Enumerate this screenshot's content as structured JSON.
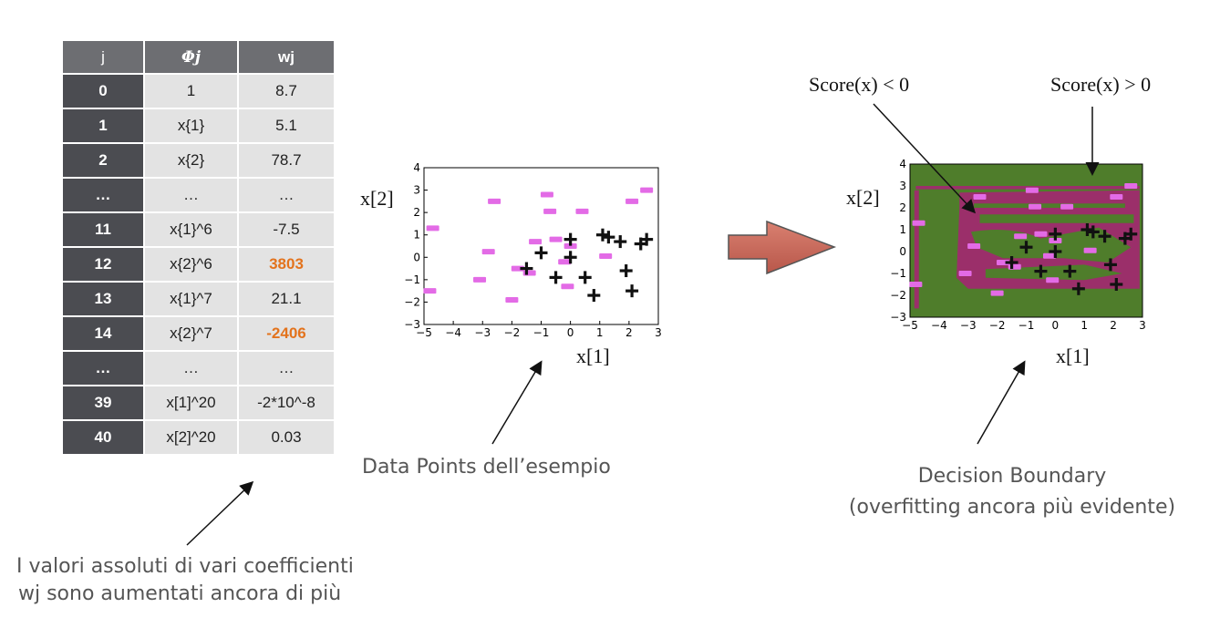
{
  "table": {
    "headers": [
      "j",
      "Φj",
      "wj"
    ],
    "rows": [
      {
        "j": "0",
        "phi": "1",
        "w": "8.7",
        "highlight": false
      },
      {
        "j": "1",
        "phi": "x{1}",
        "w": "5.1",
        "highlight": false
      },
      {
        "j": "2",
        "phi": "x{2}",
        "w": "78.7",
        "highlight": false
      },
      {
        "j": "…",
        "phi": "…",
        "w": "…",
        "highlight": false
      },
      {
        "j": "11",
        "phi": "x{1}^6",
        "w": "-7.5",
        "highlight": false
      },
      {
        "j": "12",
        "phi": "x{2}^6",
        "w": "3803",
        "highlight": true
      },
      {
        "j": "13",
        "phi": "x{1}^7",
        "w": "21.1",
        "highlight": false
      },
      {
        "j": "14",
        "phi": "x{2}^7",
        "w": "-2406",
        "highlight": true
      },
      {
        "j": "…",
        "phi": "…",
        "w": "…",
        "highlight": false
      },
      {
        "j": "39",
        "phi": "x[1]^20",
        "w": "-2*10^-8",
        "highlight": false
      },
      {
        "j": "40",
        "phi": "x[2]^20",
        "w": "0.03",
        "highlight": false
      }
    ]
  },
  "table_caption_line1": "I valori assoluti di vari coefficienti",
  "table_caption_line2": "wj sono aumentati ancora di più",
  "data_points_caption": "Data Points dell’esempio",
  "decision_caption_line1": "Decision Boundary",
  "decision_caption_line2": "(overfitting ancora più evidente)",
  "score_neg_label": "Score(x) < 0",
  "score_pos_label": "Score(x) > 0",
  "colors": {
    "negative_marker": "#e36be6",
    "positive_marker": "#111111",
    "region_negative": "#9b2f6a",
    "region_positive": "#4f7d2b",
    "arrow_fill": "#c9685a",
    "highlight": "#e3731d"
  },
  "chart_data": [
    {
      "type": "scatter",
      "title": "",
      "xlabel": "x[1]",
      "ylabel": "x[2]",
      "xlim": [
        -5,
        3
      ],
      "ylim": [
        -3,
        4
      ],
      "xticks": [
        "−5",
        "−4",
        "−3",
        "−2",
        "−1",
        "0",
        "1",
        "2",
        "3"
      ],
      "yticks": [
        "4",
        "3",
        "2",
        "1",
        "0",
        "−1",
        "−2",
        "−3"
      ],
      "series": [
        {
          "marker": "minus",
          "points": [
            [
              -4.7,
              1.3
            ],
            [
              -4.8,
              -1.5
            ],
            [
              -2.6,
              2.5
            ],
            [
              -2.8,
              0.25
            ],
            [
              -3.1,
              -1.0
            ],
            [
              -2.0,
              -1.9
            ],
            [
              -1.8,
              -0.5
            ],
            [
              -1.4,
              -0.7
            ],
            [
              -1.2,
              0.7
            ],
            [
              -0.8,
              2.8
            ],
            [
              -0.7,
              2.05
            ],
            [
              -0.5,
              0.8
            ],
            [
              -0.1,
              -1.3
            ],
            [
              0.4,
              2.05
            ],
            [
              1.2,
              0.05
            ],
            [
              2.1,
              2.5
            ],
            [
              2.6,
              3.0
            ],
            [
              -0.2,
              -0.2
            ],
            [
              0.0,
              0.5
            ]
          ]
        },
        {
          "marker": "plus",
          "points": [
            [
              -1.5,
              -0.5
            ],
            [
              -1.0,
              0.2
            ],
            [
              -0.5,
              -0.9
            ],
            [
              0.0,
              0.8
            ],
            [
              0.0,
              0.0
            ],
            [
              0.5,
              -0.9
            ],
            [
              0.8,
              -1.7
            ],
            [
              1.1,
              1.0
            ],
            [
              1.3,
              0.9
            ],
            [
              1.7,
              0.7
            ],
            [
              1.9,
              -0.6
            ],
            [
              2.1,
              -1.5
            ],
            [
              2.4,
              0.6
            ],
            [
              2.6,
              0.8
            ]
          ]
        }
      ]
    },
    {
      "type": "scatter",
      "title": "",
      "xlabel": "x[1]",
      "ylabel": "x[2]",
      "xlim": [
        -5,
        3
      ],
      "ylim": [
        -3,
        4
      ],
      "xticks": [
        "−5",
        "−4",
        "−3",
        "−2",
        "−1",
        "0",
        "1",
        "2",
        "3"
      ],
      "yticks": [
        "4",
        "3",
        "2",
        "1",
        "0",
        "−1",
        "−2",
        "−3"
      ]
    }
  ]
}
